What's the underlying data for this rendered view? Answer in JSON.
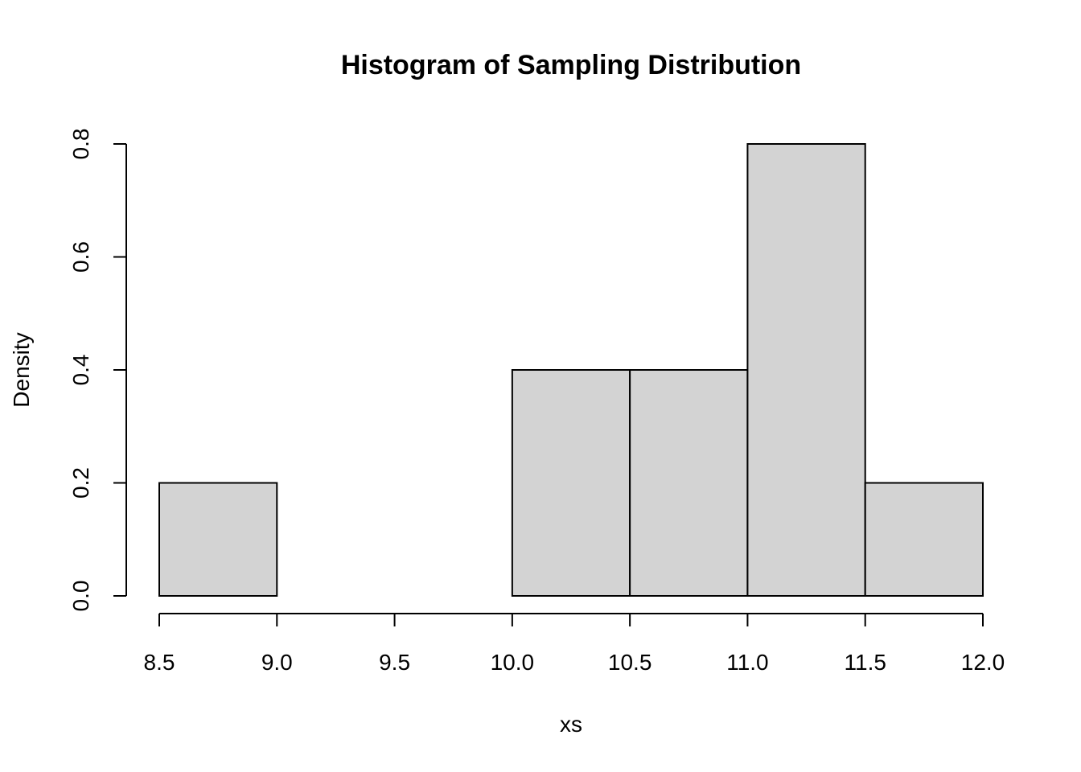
{
  "chart_data": {
    "type": "bar",
    "title": "Histogram of Sampling Distribution",
    "xlabel": "xs",
    "ylabel": "Density",
    "bins": [
      {
        "start": 8.5,
        "end": 9.0,
        "density": 0.2
      },
      {
        "start": 9.0,
        "end": 9.5,
        "density": 0.0
      },
      {
        "start": 9.5,
        "end": 10.0,
        "density": 0.0
      },
      {
        "start": 10.0,
        "end": 10.5,
        "density": 0.4
      },
      {
        "start": 10.5,
        "end": 11.0,
        "density": 0.4
      },
      {
        "start": 11.0,
        "end": 11.5,
        "density": 0.8
      },
      {
        "start": 11.5,
        "end": 12.0,
        "density": 0.2
      }
    ],
    "xlim": [
      8.5,
      12.0
    ],
    "ylim": [
      0.0,
      0.8
    ],
    "xticks": [
      "8.5",
      "9.0",
      "9.5",
      "10.0",
      "10.5",
      "11.0",
      "11.5",
      "12.0"
    ],
    "yticks": [
      "0.0",
      "0.2",
      "0.4",
      "0.6",
      "0.8"
    ],
    "bar_color": "#d3d3d3",
    "outline_color": "#000000",
    "grid": false
  }
}
